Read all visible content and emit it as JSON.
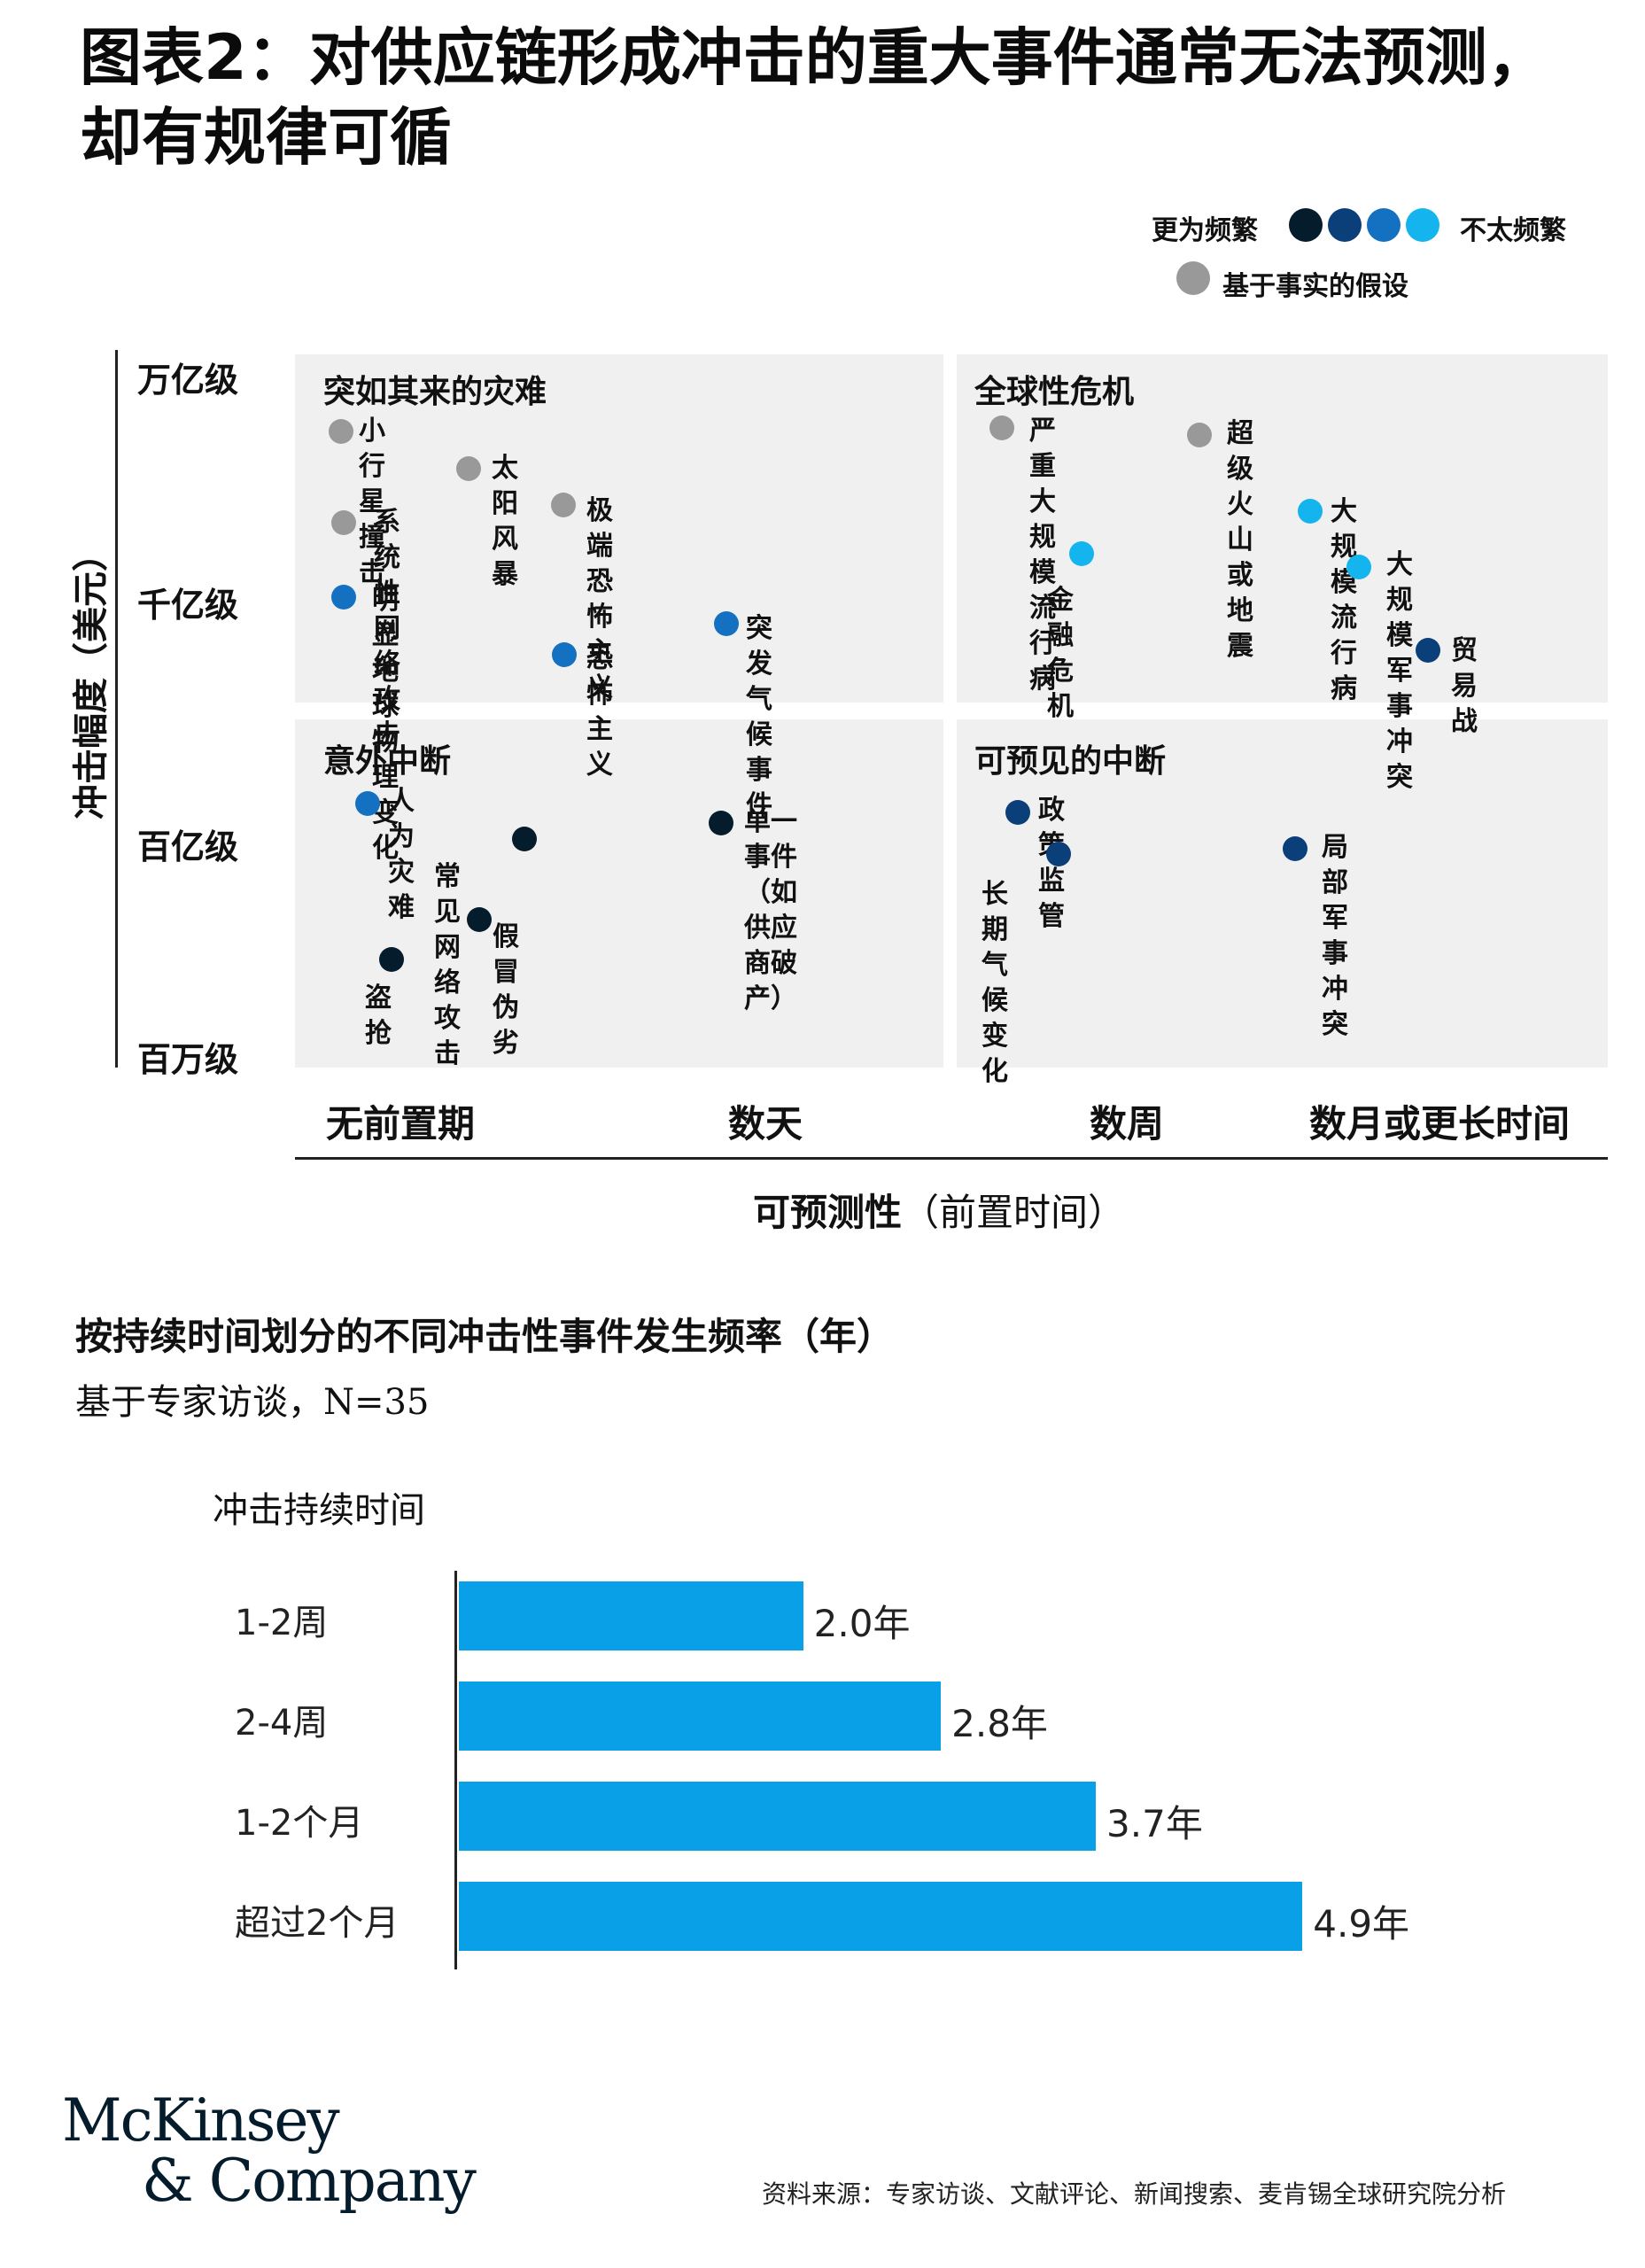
{
  "title": "图表2：对供应链形成冲击的重大事件通常无法预测，却有规律可循",
  "legend": {
    "more_frequent": "更为频繁",
    "less_frequent": "不太频繁",
    "counterfactual": "基于事实的假设",
    "scale_colors": [
      "#051c2c",
      "#0a3f7a",
      "#1471c2",
      "#14b4ef"
    ],
    "counterfactual_color": "#999999"
  },
  "matrix": {
    "y_axis_label": "冲击幅度（美元）",
    "y_ticks": [
      "万亿级",
      "千亿级",
      "百亿级",
      "百万级"
    ],
    "x_ticks": [
      "无前置期",
      "数天",
      "数周",
      "数月或更长时间"
    ],
    "x_axis_label_bold": "可预测性",
    "x_axis_label_rest": "（前置时间）",
    "panels": [
      {
        "title": "突如其来的灾难",
        "events": [
          {
            "label": "小行星撞击",
            "category": "counterfactual"
          },
          {
            "label": "太阳风暴",
            "category": "counterfactual"
          },
          {
            "label": "系统性网络\n攻击",
            "category": "counterfactual"
          },
          {
            "label": "极端恐怖主义",
            "category": "counterfactual"
          },
          {
            "label": "明显地球物理变化",
            "category": "level3"
          },
          {
            "label": "突发气候事件",
            "category": "level3"
          },
          {
            "label": "恐怖主义",
            "category": "level3"
          }
        ]
      },
      {
        "title": "全球性危机",
        "events": [
          {
            "label": "严重大规\n模流行病",
            "category": "counterfactual"
          },
          {
            "label": "超级火山或地震",
            "category": "counterfactual"
          },
          {
            "label": "大规模流行病",
            "category": "level4"
          },
          {
            "label": "金融危机",
            "category": "level4"
          },
          {
            "label": "大规模军事冲突",
            "category": "level4"
          },
          {
            "label": "贸易战",
            "category": "level2"
          }
        ]
      },
      {
        "title": "意外中断",
        "events": [
          {
            "label": "人为灾难",
            "category": "level3"
          },
          {
            "label": "常见网络攻击",
            "category": "level1"
          },
          {
            "label": "单一事件（如\n供应商破产）",
            "category": "level1"
          },
          {
            "label": "假冒伪劣",
            "category": "level1"
          },
          {
            "label": "盗抢",
            "category": "level1"
          }
        ]
      },
      {
        "title": "可预见的中断",
        "events": [
          {
            "label": "政策监管",
            "category": "level2"
          },
          {
            "label": "长期气候变化",
            "category": "level2"
          },
          {
            "label": "局部军事冲突",
            "category": "level2"
          }
        ]
      }
    ]
  },
  "chart_data": {
    "type": "bar",
    "title": "按持续时间划分的不同冲击性事件发生频率（年）",
    "subtitle": "基于专家访谈，N=35",
    "ylabel": "冲击持续时间",
    "categories": [
      "1-2周",
      "2-4周",
      "1-2个月",
      "超过2个月"
    ],
    "values": [
      2.0,
      2.8,
      3.7,
      4.9
    ],
    "value_labels": [
      "2.0年",
      "2.8年",
      "3.7年",
      "4.9年"
    ],
    "xlim": [
      0,
      5.3
    ],
    "color": "#0aa0e8"
  },
  "footer": {
    "logo_line1": "McKinsey",
    "logo_line2": "& Company",
    "source": "资料来源：专家访谈、文献评论、新闻搜索、麦肯锡全球研究院分析"
  }
}
